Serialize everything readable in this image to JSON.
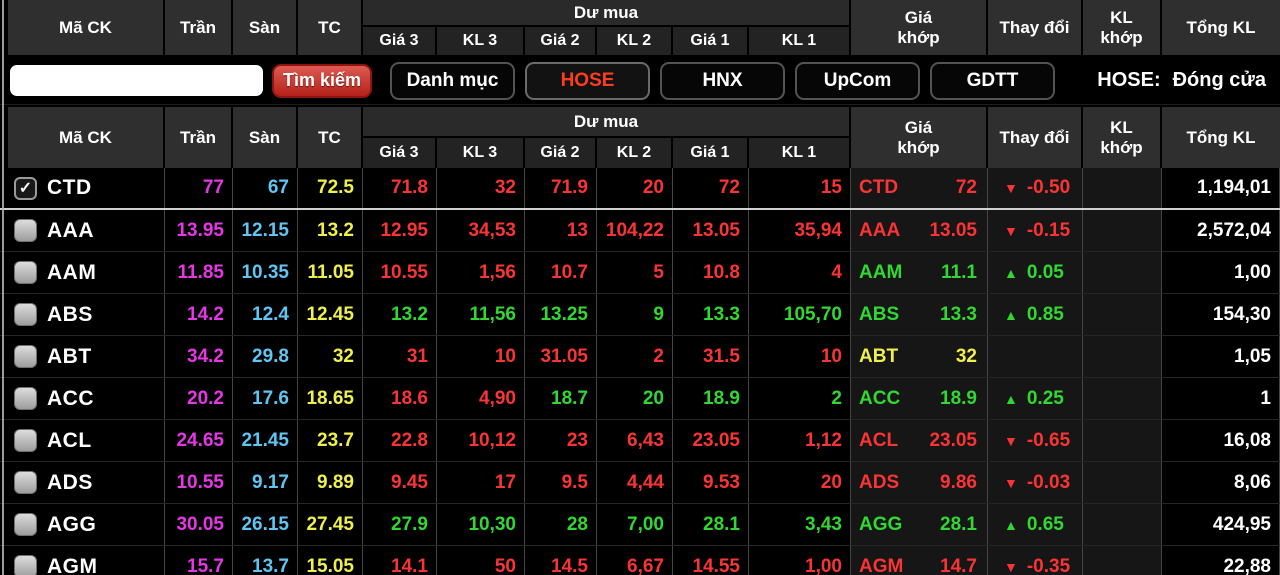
{
  "colors": {
    "ceiling": "#e636e6",
    "floor": "#5fc5f2",
    "reference": "#eff04b",
    "up": "#31d831",
    "down": "#fa3434",
    "tab_accent": "#ff3c1e"
  },
  "glyphs": {
    "check": "✓",
    "arrow_up": "▲",
    "arrow_down": "▼"
  },
  "columns": {
    "symbol": "Mã CK",
    "ceil": "Trần",
    "floor": "Sàn",
    "ref": "TC",
    "du_mua": "Dư mua",
    "gia3": "Giá 3",
    "kl3": "KL 3",
    "gia2": "Giá 2",
    "kl2": "KL 2",
    "gia1": "Giá 1",
    "kl1": "KL 1",
    "match": "Giá\nkhớp",
    "change": "Thay đổi",
    "kl_match": "KL\nkhớp",
    "total": "Tổng KL"
  },
  "toolbar": {
    "search_value": "",
    "search_button": "Tìm kiếm"
  },
  "tabs": [
    {
      "key": "danh-muc",
      "label": "Danh mục",
      "active": false
    },
    {
      "key": "hose",
      "label": "HOSE",
      "active": true
    },
    {
      "key": "hnx",
      "label": "HNX",
      "active": false
    },
    {
      "key": "upcom",
      "label": "UpCom",
      "active": false
    },
    {
      "key": "gdtt",
      "label": "GDTT",
      "active": false
    }
  ],
  "status": {
    "label": "HOSE:",
    "value": "Đóng cửa"
  },
  "rows": [
    {
      "sym": "CTD",
      "checked": true,
      "ceil": "77",
      "floor": "67",
      "ref": "72.5",
      "bids": [
        {
          "v": "71.8",
          "c": "r"
        },
        {
          "v": "32",
          "c": "r"
        },
        {
          "v": "71.9",
          "c": "r"
        },
        {
          "v": "20",
          "c": "r"
        },
        {
          "v": "72",
          "c": "r"
        },
        {
          "v": "15",
          "c": "r"
        }
      ],
      "m_sym": "CTD",
      "m_price": "72",
      "m_c": "r",
      "change": {
        "dir": "down",
        "val": "-0.50",
        "c": "r"
      },
      "klm": "",
      "total": "1,194,01"
    },
    {
      "sym": "AAA",
      "checked": false,
      "ceil": "13.95",
      "floor": "12.15",
      "ref": "13.2",
      "bids": [
        {
          "v": "12.95",
          "c": "r"
        },
        {
          "v": "34,53",
          "c": "r"
        },
        {
          "v": "13",
          "c": "r"
        },
        {
          "v": "104,22",
          "c": "r"
        },
        {
          "v": "13.05",
          "c": "r"
        },
        {
          "v": "35,94",
          "c": "r"
        }
      ],
      "m_sym": "AAA",
      "m_price": "13.05",
      "m_c": "r",
      "change": {
        "dir": "down",
        "val": "-0.15",
        "c": "r"
      },
      "klm": "",
      "total": "2,572,04"
    },
    {
      "sym": "AAM",
      "checked": false,
      "ceil": "11.85",
      "floor": "10.35",
      "ref": "11.05",
      "bids": [
        {
          "v": "10.55",
          "c": "r"
        },
        {
          "v": "1,56",
          "c": "r"
        },
        {
          "v": "10.7",
          "c": "r"
        },
        {
          "v": "5",
          "c": "r"
        },
        {
          "v": "10.8",
          "c": "r"
        },
        {
          "v": "4",
          "c": "r"
        }
      ],
      "m_sym": "AAM",
      "m_price": "11.1",
      "m_c": "g",
      "change": {
        "dir": "up",
        "val": "0.05",
        "c": "g"
      },
      "klm": "",
      "total": "1,00"
    },
    {
      "sym": "ABS",
      "checked": false,
      "ceil": "14.2",
      "floor": "12.4",
      "ref": "12.45",
      "bids": [
        {
          "v": "13.2",
          "c": "g"
        },
        {
          "v": "11,56",
          "c": "g"
        },
        {
          "v": "13.25",
          "c": "g"
        },
        {
          "v": "9",
          "c": "g"
        },
        {
          "v": "13.3",
          "c": "g"
        },
        {
          "v": "105,70",
          "c": "g"
        }
      ],
      "m_sym": "ABS",
      "m_price": "13.3",
      "m_c": "g",
      "change": {
        "dir": "up",
        "val": "0.85",
        "c": "g"
      },
      "klm": "",
      "total": "154,30"
    },
    {
      "sym": "ABT",
      "checked": false,
      "ceil": "34.2",
      "floor": "29.8",
      "ref": "32",
      "bids": [
        {
          "v": "31",
          "c": "r"
        },
        {
          "v": "10",
          "c": "r"
        },
        {
          "v": "31.05",
          "c": "r"
        },
        {
          "v": "2",
          "c": "r"
        },
        {
          "v": "31.5",
          "c": "r"
        },
        {
          "v": "10",
          "c": "r"
        }
      ],
      "m_sym": "ABT",
      "m_price": "32",
      "m_c": "y",
      "change": null,
      "klm": "",
      "total": "1,05"
    },
    {
      "sym": "ACC",
      "checked": false,
      "ceil": "20.2",
      "floor": "17.6",
      "ref": "18.65",
      "bids": [
        {
          "v": "18.6",
          "c": "r"
        },
        {
          "v": "4,90",
          "c": "r"
        },
        {
          "v": "18.7",
          "c": "g"
        },
        {
          "v": "20",
          "c": "g"
        },
        {
          "v": "18.9",
          "c": "g"
        },
        {
          "v": "2",
          "c": "g"
        }
      ],
      "m_sym": "ACC",
      "m_price": "18.9",
      "m_c": "g",
      "change": {
        "dir": "up",
        "val": "0.25",
        "c": "g"
      },
      "klm": "",
      "total": "1"
    },
    {
      "sym": "ACL",
      "checked": false,
      "ceil": "24.65",
      "floor": "21.45",
      "ref": "23.7",
      "bids": [
        {
          "v": "22.8",
          "c": "r"
        },
        {
          "v": "10,12",
          "c": "r"
        },
        {
          "v": "23",
          "c": "r"
        },
        {
          "v": "6,43",
          "c": "r"
        },
        {
          "v": "23.05",
          "c": "r"
        },
        {
          "v": "1,12",
          "c": "r"
        }
      ],
      "m_sym": "ACL",
      "m_price": "23.05",
      "m_c": "r",
      "change": {
        "dir": "down",
        "val": "-0.65",
        "c": "r"
      },
      "klm": "",
      "total": "16,08"
    },
    {
      "sym": "ADS",
      "checked": false,
      "ceil": "10.55",
      "floor": "9.17",
      "ref": "9.89",
      "bids": [
        {
          "v": "9.45",
          "c": "r"
        },
        {
          "v": "17",
          "c": "r"
        },
        {
          "v": "9.5",
          "c": "r"
        },
        {
          "v": "4,44",
          "c": "r"
        },
        {
          "v": "9.53",
          "c": "r"
        },
        {
          "v": "20",
          "c": "r"
        }
      ],
      "m_sym": "ADS",
      "m_price": "9.86",
      "m_c": "r",
      "change": {
        "dir": "down",
        "val": "-0.03",
        "c": "r"
      },
      "klm": "",
      "total": "8,06"
    },
    {
      "sym": "AGG",
      "checked": false,
      "ceil": "30.05",
      "floor": "26.15",
      "ref": "27.45",
      "bids": [
        {
          "v": "27.9",
          "c": "g"
        },
        {
          "v": "10,30",
          "c": "g"
        },
        {
          "v": "28",
          "c": "g"
        },
        {
          "v": "7,00",
          "c": "g"
        },
        {
          "v": "28.1",
          "c": "g"
        },
        {
          "v": "3,43",
          "c": "g"
        }
      ],
      "m_sym": "AGG",
      "m_price": "28.1",
      "m_c": "g",
      "change": {
        "dir": "up",
        "val": "0.65",
        "c": "g"
      },
      "klm": "",
      "total": "424,95"
    },
    {
      "sym": "AGM",
      "checked": false,
      "ceil": "15.7",
      "floor": "13.7",
      "ref": "15.05",
      "bids": [
        {
          "v": "14.1",
          "c": "r"
        },
        {
          "v": "50",
          "c": "r"
        },
        {
          "v": "14.5",
          "c": "r"
        },
        {
          "v": "6,67",
          "c": "r"
        },
        {
          "v": "14.55",
          "c": "r"
        },
        {
          "v": "1,00",
          "c": "r"
        }
      ],
      "m_sym": "AGM",
      "m_price": "14.7",
      "m_c": "r",
      "change": {
        "dir": "down",
        "val": "-0.35",
        "c": "r"
      },
      "klm": "",
      "total": "22,88"
    }
  ]
}
